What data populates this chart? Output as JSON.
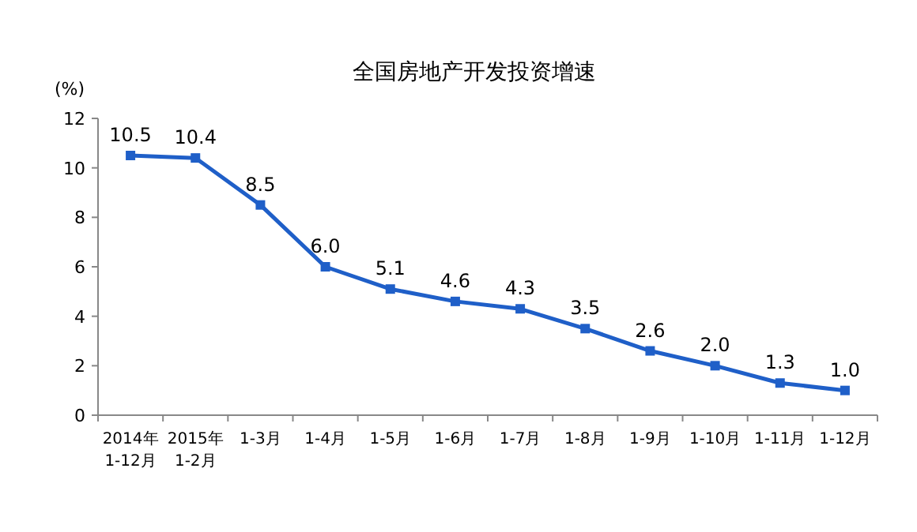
{
  "chart_data": {
    "type": "line",
    "title": "全国房地产开发投资增速",
    "ylabel": "(%)",
    "categories": [
      "2014年\n1-12月",
      "2015年\n1-2月",
      "1-3月",
      "1-4月",
      "1-5月",
      "1-6月",
      "1-7月",
      "1-8月",
      "1-9月",
      "1-10月",
      "1-11月",
      "1-12月"
    ],
    "series": [
      {
        "color": "#1f5fc8",
        "values": [
          10.5,
          10.4,
          8.5,
          6.0,
          5.1,
          4.6,
          4.3,
          3.5,
          2.6,
          2.0,
          1.3,
          1.0
        ],
        "value_labels": [
          "10.5",
          "10.4",
          "8.5",
          "6.0",
          "5.1",
          "4.6",
          "4.3",
          "3.5",
          "2.6",
          "2.0",
          "1.3",
          "1.0"
        ]
      }
    ],
    "ylim": [
      0,
      12
    ],
    "yticks": [
      0,
      2,
      4,
      6,
      8,
      10,
      12
    ],
    "grid": false,
    "marker": "square",
    "line_style": "solid"
  }
}
